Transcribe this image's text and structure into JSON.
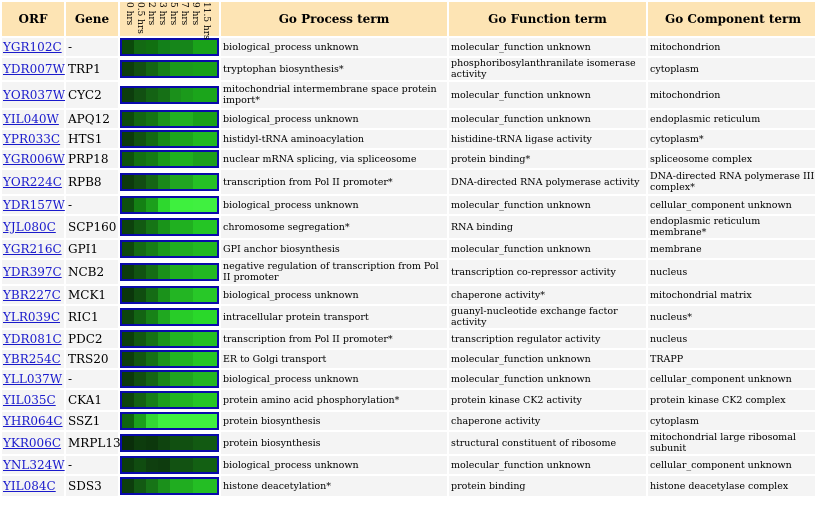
{
  "headers": {
    "orf": "ORF",
    "gene": "Gene",
    "process": "Go Process term",
    "function": "Go Function term",
    "component": "Go Component term"
  },
  "time_points": [
    "0 hrs",
    "0.5 hrs",
    "2 hrs",
    "3 hrs",
    "5 hrs",
    "7 hrs",
    "9 hrs",
    "11.5 hrs"
  ],
  "rows": [
    {
      "orf": "YGR102C",
      "gene": "-",
      "process": "biological_process unknown",
      "function": "molecular_function unknown",
      "component": "mitochondrion",
      "heat": [
        "#0b4a0b",
        "#136a13",
        "#117011",
        "#13801a",
        "#16861a",
        "#16861a",
        "#1aa21a",
        "#1aa21a"
      ]
    },
    {
      "orf": "YDR007W",
      "gene": "TRP1",
      "process": "tryptophan biosynthesis*",
      "function": "phosphoribosylanthranilate isomerase activity",
      "component": "cytoplasm",
      "heat": [
        "#0d3d0d",
        "#124f12",
        "#146614",
        "#188018",
        "#1b9a1b",
        "#1b9a1b",
        "#19a019",
        "#19a019"
      ]
    },
    {
      "orf": "YOR037W",
      "gene": "CYC2",
      "process": "mitochondrial intermembrane space protein import*",
      "function": "molecular_function unknown",
      "component": "mitochondrion",
      "heat": [
        "#0d3d0d",
        "#125012",
        "#146314",
        "#167016",
        "#1b901b",
        "#1b9a1b",
        "#1ba51b",
        "#1ba51b"
      ]
    },
    {
      "orf": "YIL040W",
      "gene": "APQ12",
      "process": "biological_process unknown",
      "function": "molecular_function unknown",
      "component": "endoplasmic reticulum",
      "heat": [
        "#0d4a0d",
        "#136613",
        "#157515",
        "#1c941c",
        "#22b022",
        "#22b022",
        "#1aa01a",
        "#1aa01a"
      ]
    },
    {
      "orf": "YPR033C",
      "gene": "HTS1",
      "process": "histidyl-tRNA aminoacylation",
      "function": "histidine-tRNA ligase activity",
      "component": "cytoplasm*",
      "heat": [
        "#0c3a0c",
        "#115211",
        "#136a13",
        "#178a17",
        "#1da51d",
        "#1da51d",
        "#22b822",
        "#22b822"
      ]
    },
    {
      "orf": "YGR006W",
      "gene": "PRP18",
      "process": "nuclear mRNA splicing, via spliceosome",
      "function": "protein binding*",
      "component": "spliceosome complex",
      "heat": [
        "#0e520e",
        "#137013",
        "#157c15",
        "#1a9a1a",
        "#1fb01f",
        "#1fb01f",
        "#1d9f1d",
        "#1d9f1d"
      ]
    },
    {
      "orf": "YOR224C",
      "gene": "RPB8",
      "process": "transcription from Pol II promoter*",
      "function": "DNA-directed RNA polymerase activity",
      "component": "DNA-directed RNA polymerase III complex*",
      "heat": [
        "#0d3a0d",
        "#124c12",
        "#156515",
        "#1a881a",
        "#21a521",
        "#21a521",
        "#25c025",
        "#25c025"
      ]
    },
    {
      "orf": "YDR157W",
      "gene": "-",
      "process": "biological_process unknown",
      "function": "molecular_function unknown",
      "component": "cellular_component unknown",
      "heat": [
        "#0e500e",
        "#148014",
        "#1ca01c",
        "#2ed82e",
        "#3ef03e",
        "#3ef03e",
        "#40f040",
        "#40f040"
      ]
    },
    {
      "orf": "YJL080C",
      "gene": "SCP160",
      "process": "chromosome segregation*",
      "function": "RNA binding",
      "component": "endoplasmic reticulum membrane*",
      "heat": [
        "#0d420d",
        "#125a12",
        "#167516",
        "#1a941a",
        "#20b020",
        "#20b020",
        "#25c525",
        "#25c525"
      ]
    },
    {
      "orf": "YGR216C",
      "gene": "GPI1",
      "process": "GPI anchor biosynthesis",
      "function": "molecular_function unknown",
      "component": "membrane",
      "heat": [
        "#0e480e",
        "#146a14",
        "#177e17",
        "#1b991b",
        "#20ae20",
        "#20ae20",
        "#22b822",
        "#22b822"
      ]
    },
    {
      "orf": "YDR397C",
      "gene": "NCB2",
      "process": "negative regulation of transcription from Pol II promoter",
      "function": "transcription co-repressor activity",
      "component": "nucleus",
      "heat": [
        "#0c3c0c",
        "#115311",
        "#156d15",
        "#1a901a",
        "#20ad20",
        "#20ad20",
        "#22b822",
        "#22b822"
      ]
    },
    {
      "orf": "YBR227C",
      "gene": "MCK1",
      "process": "biological_process unknown",
      "function": "chaperone activity*",
      "component": "mitochondrial matrix",
      "heat": [
        "#0b360b",
        "#104d10",
        "#156c15",
        "#1b921b",
        "#23b523",
        "#23b523",
        "#28c828",
        "#28c828"
      ]
    },
    {
      "orf": "YLR039C",
      "gene": "RIC1",
      "process": "intracellular protein transport",
      "function": "guanyl-nucleotide exchange factor activity",
      "component": "nucleus*",
      "heat": [
        "#0d440d",
        "#136413",
        "#188218",
        "#20a820",
        "#28cc28",
        "#28cc28",
        "#2ad82a",
        "#2ad82a"
      ]
    },
    {
      "orf": "YDR081C",
      "gene": "PDC2",
      "process": "transcription from Pol II promoter*",
      "function": "transcription regulator activity",
      "component": "nucleus",
      "heat": [
        "#0c3e0c",
        "#125812",
        "#167216",
        "#1b941b",
        "#22b322",
        "#22b322",
        "#24c024",
        "#24c024"
      ]
    },
    {
      "orf": "YBR254C",
      "gene": "TRS20",
      "process": "ER to Golgi transport",
      "function": "molecular_function unknown",
      "component": "TRAPP",
      "heat": [
        "#0d3d0d",
        "#125612",
        "#167116",
        "#1c941c",
        "#22b422",
        "#22b422",
        "#26c626",
        "#26c626"
      ]
    },
    {
      "orf": "YLL037W",
      "gene": "-",
      "process": "biological_process unknown",
      "function": "molecular_function unknown",
      "component": "cellular_component unknown",
      "heat": [
        "#0c380c",
        "#114e11",
        "#156515",
        "#1a861a",
        "#20a420",
        "#20a420",
        "#23b523",
        "#23b523"
      ]
    },
    {
      "orf": "YIL035C",
      "gene": "CKA1",
      "process": "protein amino acid phosphorylation*",
      "function": "protein kinase CK2 activity",
      "component": "protein kinase CK2 complex",
      "heat": [
        "#0d440d",
        "#136113",
        "#177e17",
        "#1d9e1d",
        "#22b622",
        "#22b622",
        "#25c525",
        "#25c525"
      ]
    },
    {
      "orf": "YHR064C",
      "gene": "SSZ1",
      "process": "protein biosynthesis",
      "function": "chaperone activity",
      "component": "cytoplasm",
      "heat": [
        "#0f640f",
        "#1ca01c",
        "#34d834",
        "#40f040",
        "#40f040",
        "#40f040",
        "#40f040",
        "#40f040"
      ]
    },
    {
      "orf": "YKR006C",
      "gene": "MRPL13",
      "process": "protein biosynthesis",
      "function": "structural constituent of ribosome",
      "component": "mitochondrial large ribosomal subunit",
      "heat": [
        "#0a2e0a",
        "#0d3c0d",
        "#0c380c",
        "#0f440f",
        "#115011",
        "#115011",
        "#125a12",
        "#125a12"
      ]
    },
    {
      "orf": "YNL324W",
      "gene": "-",
      "process": "biological_process unknown",
      "function": "molecular_function unknown",
      "component": "cellular_component unknown",
      "heat": [
        "#0c3c0c",
        "#104c10",
        "#0f3f0f",
        "#0e3c0e",
        "#125212",
        "#125212",
        "#136013",
        "#136013"
      ]
    },
    {
      "orf": "YIL084C",
      "gene": "SDS3",
      "process": "histone deacetylation*",
      "function": "protein binding",
      "component": "histone deacetylase complex",
      "heat": [
        "#0d3e0d",
        "#135a13",
        "#177417",
        "#1b901b",
        "#20ad20",
        "#20ad20",
        "#24be24",
        "#24be24"
      ]
    }
  ]
}
